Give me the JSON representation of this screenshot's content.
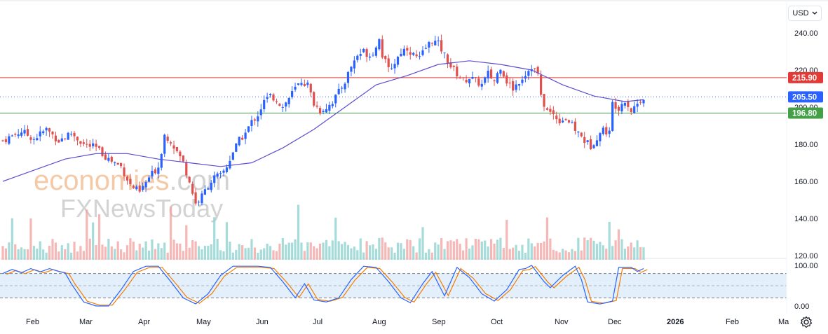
{
  "currency": {
    "label": "USD",
    "chevron": "chevron-down-icon"
  },
  "watermark": {
    "line1a": "economies",
    "line1b": ".com",
    "line2": "FXNewsToday"
  },
  "colors": {
    "up": "#2962ff",
    "down": "#e0504f",
    "ma": "#5b4fcf",
    "resistance": "#e53935",
    "support": "#43a047",
    "stochK": "#2962ff",
    "stochD": "#f57c00",
    "current": "#2962ff"
  },
  "chart_data": {
    "type": "candlestick",
    "y_axis": {
      "ticks": [
        240,
        220,
        200,
        180,
        160,
        140,
        120
      ],
      "tick_labels": [
        "240.00",
        "220.00",
        "200.00",
        "180.00",
        "160.00",
        "140.00",
        "120.00"
      ],
      "range": [
        117,
        250
      ]
    },
    "x_axis": {
      "labels": [
        "Feb",
        "Mar",
        "Apr",
        "May",
        "Jun",
        "Jul",
        "Aug",
        "Sep",
        "Oct",
        "Nov",
        "Dec",
        "2026",
        "Feb",
        "Ma"
      ],
      "bold_labels": [
        "2026"
      ]
    },
    "levels": [
      {
        "name": "resistance",
        "value": 215.9,
        "label": "215.90"
      },
      {
        "name": "current",
        "value": 205.5,
        "label": "205.50"
      },
      {
        "name": "support",
        "value": 196.8,
        "label": "196.80"
      }
    ],
    "price_path": [
      [
        0,
        182
      ],
      [
        6,
        187
      ],
      [
        10,
        183
      ],
      [
        14,
        188
      ],
      [
        18,
        182
      ],
      [
        22,
        186
      ],
      [
        26,
        180
      ],
      [
        30,
        178
      ],
      [
        34,
        172
      ],
      [
        38,
        168
      ],
      [
        41,
        158
      ],
      [
        44,
        154
      ],
      [
        47,
        162
      ],
      [
        50,
        168
      ],
      [
        52,
        185
      ],
      [
        54,
        182
      ],
      [
        56,
        176
      ],
      [
        58,
        170
      ],
      [
        60,
        160
      ],
      [
        62,
        148
      ],
      [
        64,
        152
      ],
      [
        66,
        158
      ],
      [
        68,
        162
      ],
      [
        70,
        163
      ],
      [
        72,
        168
      ],
      [
        74,
        176
      ],
      [
        76,
        182
      ],
      [
        78,
        186
      ],
      [
        80,
        192
      ],
      [
        82,
        196
      ],
      [
        84,
        203
      ],
      [
        86,
        206
      ],
      [
        88,
        204
      ],
      [
        90,
        200
      ],
      [
        92,
        205
      ],
      [
        94,
        210
      ],
      [
        96,
        214
      ],
      [
        98,
        212
      ],
      [
        100,
        202
      ],
      [
        102,
        198
      ],
      [
        104,
        200
      ],
      [
        106,
        203
      ],
      [
        108,
        208
      ],
      [
        110,
        214
      ],
      [
        112,
        222
      ],
      [
        114,
        228
      ],
      [
        116,
        230
      ],
      [
        118,
        228
      ],
      [
        120,
        232
      ],
      [
        121,
        238
      ],
      [
        122,
        228
      ],
      [
        124,
        220
      ],
      [
        126,
        224
      ],
      [
        128,
        230
      ],
      [
        130,
        232
      ],
      [
        132,
        228
      ],
      [
        134,
        226
      ],
      [
        136,
        232
      ],
      [
        138,
        236
      ],
      [
        140,
        234
      ],
      [
        142,
        228
      ],
      [
        144,
        222
      ],
      [
        146,
        218
      ],
      [
        148,
        214
      ],
      [
        150,
        216
      ],
      [
        152,
        214
      ],
      [
        154,
        212
      ],
      [
        156,
        218
      ],
      [
        158,
        214
      ],
      [
        160,
        222
      ],
      [
        162,
        214
      ],
      [
        164,
        210
      ],
      [
        166,
        214
      ],
      [
        168,
        218
      ],
      [
        170,
        222
      ],
      [
        172,
        218
      ],
      [
        173,
        205
      ],
      [
        175,
        198
      ],
      [
        177,
        196
      ],
      [
        179,
        193
      ],
      [
        181,
        194
      ],
      [
        183,
        190
      ],
      [
        185,
        186
      ],
      [
        187,
        182
      ],
      [
        189,
        179
      ],
      [
        191,
        184
      ],
      [
        193,
        188
      ],
      [
        195,
        186
      ],
      [
        196,
        202
      ],
      [
        198,
        200
      ],
      [
        200,
        204
      ],
      [
        202,
        198
      ],
      [
        204,
        202
      ],
      [
        206,
        205.5
      ]
    ],
    "moving_average": [
      [
        0,
        160
      ],
      [
        10,
        166
      ],
      [
        20,
        172
      ],
      [
        30,
        175
      ],
      [
        40,
        175
      ],
      [
        50,
        172
      ],
      [
        60,
        170
      ],
      [
        70,
        168
      ],
      [
        80,
        170
      ],
      [
        90,
        178
      ],
      [
        100,
        188
      ],
      [
        110,
        200
      ],
      [
        120,
        212
      ],
      [
        130,
        217
      ],
      [
        140,
        223
      ],
      [
        150,
        225
      ],
      [
        160,
        223
      ],
      [
        170,
        220
      ],
      [
        180,
        212
      ],
      [
        190,
        206
      ],
      [
        200,
        203
      ],
      [
        206,
        204
      ]
    ],
    "series_x_range": [
      0,
      206
    ],
    "stochastic": {
      "range": [
        0,
        100
      ],
      "tick_labels": [
        "100.00",
        "0.00"
      ],
      "overbought": 80,
      "oversold": 20,
      "k": [
        [
          0,
          80
        ],
        [
          3,
          90
        ],
        [
          6,
          82
        ],
        [
          9,
          92
        ],
        [
          12,
          84
        ],
        [
          15,
          92
        ],
        [
          18,
          85
        ],
        [
          20,
          82
        ],
        [
          22,
          55
        ],
        [
          26,
          10
        ],
        [
          30,
          0
        ],
        [
          34,
          0
        ],
        [
          38,
          40
        ],
        [
          42,
          85
        ],
        [
          46,
          98
        ],
        [
          50,
          98
        ],
        [
          54,
          60
        ],
        [
          58,
          20
        ],
        [
          62,
          5
        ],
        [
          66,
          30
        ],
        [
          70,
          75
        ],
        [
          74,
          98
        ],
        [
          78,
          98
        ],
        [
          82,
          98
        ],
        [
          86,
          95
        ],
        [
          90,
          60
        ],
        [
          94,
          20
        ],
        [
          97,
          55
        ],
        [
          100,
          15
        ],
        [
          104,
          10
        ],
        [
          108,
          20
        ],
        [
          112,
          65
        ],
        [
          116,
          98
        ],
        [
          120,
          95
        ],
        [
          124,
          60
        ],
        [
          128,
          20
        ],
        [
          131,
          8
        ],
        [
          135,
          55
        ],
        [
          138,
          85
        ],
        [
          142,
          25
        ],
        [
          146,
          95
        ],
        [
          150,
          70
        ],
        [
          154,
          30
        ],
        [
          158,
          12
        ],
        [
          162,
          40
        ],
        [
          166,
          90
        ],
        [
          168,
          92
        ],
        [
          170,
          100
        ],
        [
          174,
          60
        ],
        [
          176,
          45
        ],
        [
          180,
          75
        ],
        [
          184,
          98
        ],
        [
          186,
          65
        ],
        [
          188,
          10
        ],
        [
          192,
          5
        ],
        [
          196,
          12
        ],
        [
          198,
          95
        ],
        [
          202,
          95
        ],
        [
          204,
          85
        ],
        [
          206,
          92
        ]
      ]
    }
  }
}
